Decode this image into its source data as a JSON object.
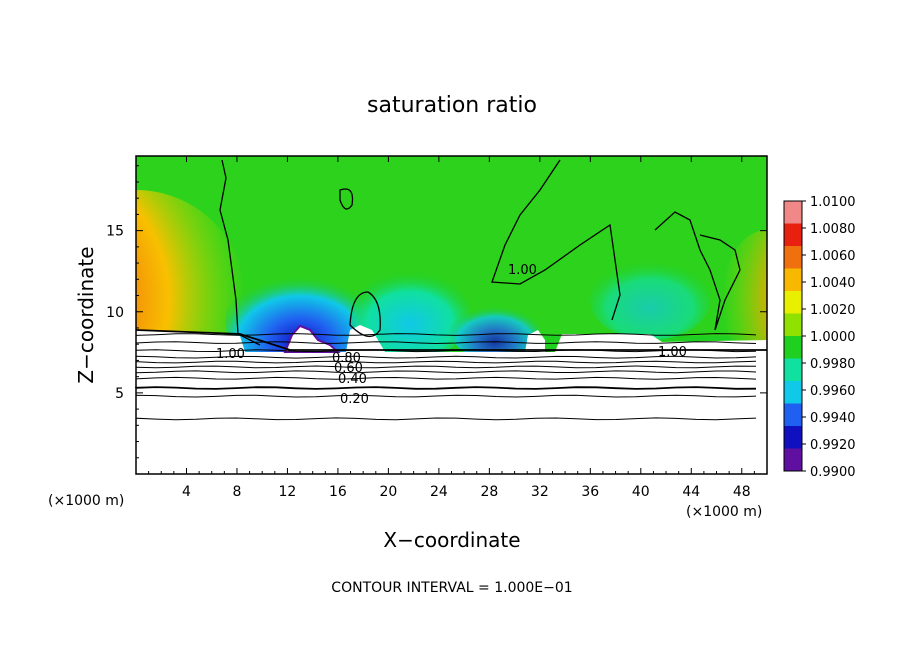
{
  "chart_data": {
    "type": "heatmap",
    "title": "saturation ratio",
    "xlabel": "X−coordinate",
    "ylabel": "Z−coordinate",
    "x_unit_left": "(×1000 m)",
    "x_unit_right": "(×1000 m)",
    "footnote": "CONTOUR INTERVAL = 1.000E−01",
    "xlim": [
      0,
      50
    ],
    "ylim": [
      0,
      19.6
    ],
    "xticks": [
      "4",
      "8",
      "12",
      "16",
      "20",
      "24",
      "28",
      "32",
      "36",
      "40",
      "44",
      "48"
    ],
    "xtick_values": [
      4,
      8,
      12,
      16,
      20,
      24,
      28,
      32,
      36,
      40,
      44,
      48
    ],
    "yticks": [
      "5",
      "10",
      "15"
    ],
    "ytick_values": [
      5,
      10,
      15
    ],
    "colorbar": {
      "labels": [
        "1.0100",
        "1.0080",
        "1.0060",
        "1.0040",
        "1.0020",
        "1.0000",
        "0.9980",
        "0.9960",
        "0.9940",
        "0.9920",
        "0.9900"
      ],
      "colors": [
        "#f08888",
        "#e82010",
        "#f07010",
        "#f8b800",
        "#e8f000",
        "#90e000",
        "#20d020",
        "#10e0a0",
        "#10c8e8",
        "#2060f0",
        "#1010c0",
        "#6010a0"
      ]
    },
    "contour_labels": [
      "1.00",
      "1.00",
      "1.00",
      "0.80",
      "0.60",
      "0.40",
      "0.20"
    ],
    "contour_levels_z": [
      8.6,
      8.1,
      7.6,
      7.2,
      6.9,
      6.6,
      6.3,
      5.9,
      5.3,
      4.8,
      3.4
    ]
  }
}
